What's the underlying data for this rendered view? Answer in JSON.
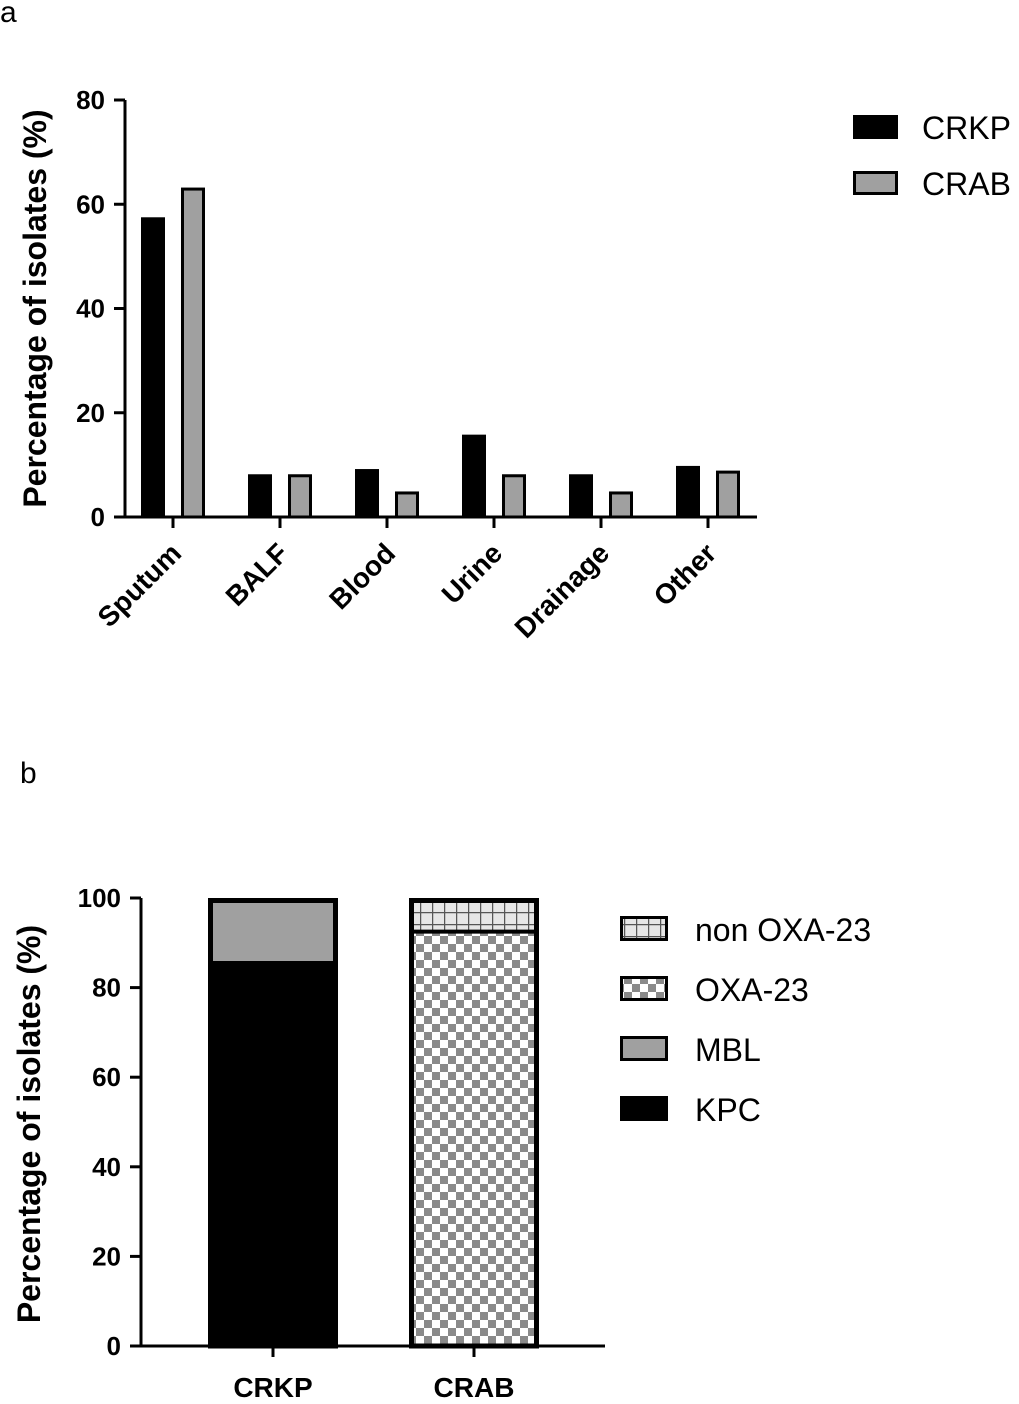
{
  "chart_data": [
    {
      "type": "bar",
      "panel": "a",
      "ylabel": "Percentage of isolates (%)",
      "ylim": [
        0,
        80
      ],
      "yticks": [
        0,
        20,
        40,
        60,
        80
      ],
      "categories": [
        "Sputum",
        "BALF",
        "Blood",
        "Urine",
        "Drainage",
        "Other"
      ],
      "series": [
        {
          "name": "CRKP",
          "color": "#000000",
          "values": [
            57.5,
            8.2,
            9.2,
            15.8,
            8.2,
            9.8
          ]
        },
        {
          "name": "CRAB",
          "color": "#a0a0a0",
          "values": [
            63.2,
            8.2,
            4.9,
            8.2,
            4.9,
            8.9
          ]
        }
      ]
    },
    {
      "type": "stacked-bar",
      "panel": "b",
      "ylabel": "Percentage of isolates (%)",
      "ylim": [
        0,
        100
      ],
      "yticks": [
        0,
        20,
        40,
        60,
        80,
        100
      ],
      "categories": [
        "CRKP",
        "CRAB"
      ],
      "legend": [
        "non OXA-23",
        "OXA-23",
        "MBL",
        "KPC"
      ],
      "series": [
        {
          "name": "KPC",
          "values": [
            85.5,
            0
          ]
        },
        {
          "name": "MBL",
          "values": [
            14.5,
            0
          ]
        },
        {
          "name": "OXA-23",
          "values": [
            0,
            92.5
          ]
        },
        {
          "name": "non OXA-23",
          "values": [
            0,
            7.5
          ]
        }
      ]
    }
  ]
}
